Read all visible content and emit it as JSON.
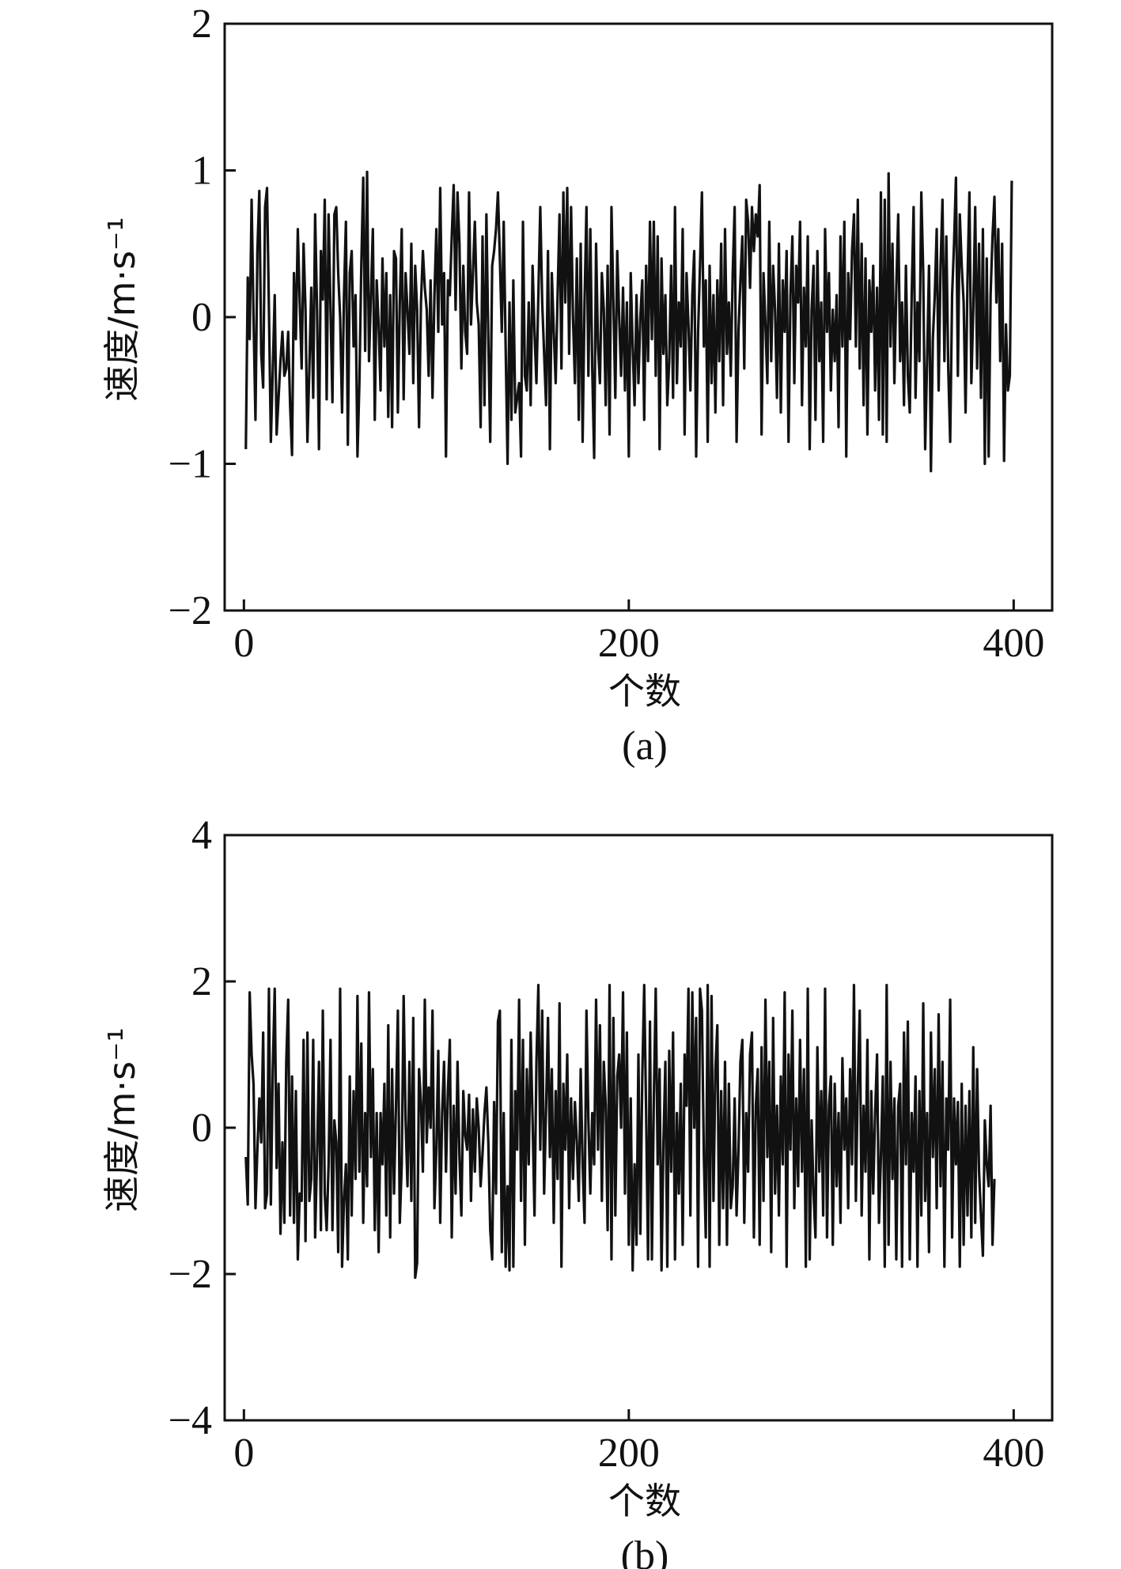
{
  "chart_data": [
    {
      "type": "line",
      "panel_label": "(a)",
      "xlabel": "个数",
      "ylabel": "速度/m·s⁻¹",
      "xlim": [
        -10,
        420
      ],
      "ylim": [
        -2,
        2
      ],
      "xticks": [
        0,
        200,
        400
      ],
      "xtick_labels": [
        "0",
        "200",
        "400"
      ],
      "yticks": [
        -2,
        -1,
        0,
        1,
        2
      ],
      "ytick_labels": [
        "−2",
        "−1",
        "0",
        "1",
        "2"
      ],
      "grid": false,
      "series": [
        {
          "x_start": 1,
          "x_step": 1,
          "values": [
            -0.9,
            0.27,
            -0.15,
            0.8,
            0.0,
            -0.7,
            0.45,
            0.86,
            -0.25,
            -0.48,
            0.75,
            0.88,
            0.05,
            -0.85,
            -0.36,
            0.15,
            -0.8,
            -0.55,
            -0.3,
            -0.1,
            -0.4,
            -0.35,
            -0.1,
            -0.6,
            -0.94,
            0.3,
            -0.15,
            0.6,
            0.1,
            -0.35,
            0.5,
            0.05,
            -0.85,
            -0.35,
            0.2,
            -0.55,
            0.7,
            0.05,
            -0.9,
            0.45,
            0.12,
            0.8,
            -0.56,
            0.7,
            0.05,
            -0.58,
            0.7,
            0.75,
            0.3,
            0.0,
            -0.65,
            0.15,
            0.65,
            -0.87,
            0.3,
            0.45,
            -0.2,
            0.15,
            -0.95,
            -0.45,
            0.35,
            0.95,
            -0.23,
            0.99,
            -0.3,
            0.15,
            0.6,
            -0.7,
            0.25,
            -0.05,
            -0.5,
            0.4,
            -0.2,
            0.3,
            -0.68,
            0.15,
            -0.75,
            0.45,
            0.4,
            -0.65,
            0.1,
            0.6,
            -0.56,
            0.3,
            0.05,
            -0.25,
            0.5,
            -0.45,
            0.35,
            0.05,
            -0.75,
            0.1,
            0.45,
            0.2,
            0.05,
            -0.4,
            0.25,
            -0.55,
            0.15,
            0.6,
            -0.1,
            0.88,
            -0.05,
            0.3,
            -0.95,
            0.25,
            0.15,
            0.55,
            0.9,
            0.05,
            0.85,
            0.5,
            -0.35,
            0.35,
            -0.1,
            -0.25,
            0.85,
            -0.05,
            0.3,
            0.65,
            0.1,
            -0.05,
            -0.75,
            0.55,
            -0.6,
            0.7,
            -0.15,
            -0.85,
            0.35,
            0.45,
            0.6,
            0.85,
            0.4,
            -0.1,
            0.65,
            -0.2,
            -1.0,
            0.1,
            -0.7,
            0.25,
            -0.65,
            -0.55,
            -0.45,
            -0.95,
            0.65,
            -0.4,
            -0.5,
            0.1,
            -0.6,
            0.35,
            -0.1,
            -0.45,
            0.15,
            0.75,
            0.1,
            -0.25,
            -0.6,
            0.45,
            -0.9,
            0.3,
            -0.1,
            -0.45,
            0.15,
            0.7,
            -0.35,
            0.85,
            0.1,
            0.88,
            -0.25,
            0.75,
            0.0,
            -0.45,
            0.4,
            -0.7,
            0.5,
            -0.85,
            0.1,
            0.75,
            -0.4,
            0.6,
            -0.35,
            -0.96,
            0.5,
            -0.2,
            -0.45,
            0.3,
            0.05,
            -0.6,
            0.35,
            -0.8,
            0.75,
            0.1,
            -0.55,
            0.45,
            0.0,
            -0.4,
            0.2,
            -0.5,
            0.1,
            -0.95,
            0.3,
            -0.2,
            -0.6,
            0.15,
            -0.45,
            0.0,
            0.25,
            -0.7,
            0.35,
            -0.3,
            0.65,
            -0.15,
            0.65,
            -0.4,
            0.55,
            -0.9,
            0.4,
            -0.25,
            0.15,
            -0.6,
            -0.3,
            0.35,
            -0.55,
            0.75,
            -0.45,
            0.1,
            -0.2,
            0.6,
            -0.8,
            0.3,
            -0.05,
            -0.5,
            0.15,
            0.45,
            -0.95,
            -0.1,
            0.35,
            0.85,
            -0.2,
            0.25,
            -0.85,
            0.35,
            -0.45,
            0.15,
            -0.65,
            0.25,
            -0.3,
            0.5,
            -0.6,
            0.6,
            -0.25,
            0.1,
            -0.4,
            0.3,
            0.75,
            -0.85,
            -0.1,
            0.25,
            0.55,
            -0.35,
            0.8,
            0.65,
            0.2,
            0.75,
            0.45,
            0.7,
            0.55,
            0.9,
            -0.8,
            0.3,
            -0.05,
            -0.45,
            0.65,
            -0.3,
            0.35,
            0.05,
            -0.55,
            0.5,
            -0.65,
            0.25,
            -0.1,
            0.45,
            -0.85,
            0.15,
            0.55,
            -0.45,
            0.35,
            0.1,
            0.65,
            -0.6,
            0.2,
            -0.2,
            0.55,
            -0.9,
            0.05,
            0.35,
            -0.7,
            0.45,
            -0.3,
            0.1,
            -0.85,
            0.6,
            -0.1,
            0.3,
            -0.5,
            0.05,
            -0.3,
            0.15,
            -0.75,
            0.55,
            -0.2,
            0.65,
            -0.95,
            0.3,
            -0.15,
            0.45,
            0.7,
            -0.2,
            0.8,
            -0.35,
            0.5,
            -0.6,
            0.4,
            -0.8,
            0.25,
            -0.1,
            0.35,
            -0.5,
            0.2,
            -0.7,
            0.85,
            -0.8,
            0.8,
            -0.85,
            0.98,
            -0.2,
            0.5,
            -0.45,
            0.2,
            0.7,
            -0.3,
            0.1,
            -0.6,
            0.35,
            -0.4,
            -0.65,
            0.15,
            0.75,
            -0.55,
            0.1,
            -0.3,
            0.85,
            0.3,
            -0.9,
            -0.3,
            0.35,
            -1.05,
            -0.15,
            0.15,
            0.6,
            -0.5,
            0.35,
            0.8,
            -0.3,
            0.55,
            -0.35,
            -0.85,
            0.15,
            0.5,
            0.95,
            -0.4,
            0.7,
            0.35,
            0.1,
            -0.65,
            0.25,
            0.85,
            -0.45,
            0.05,
            0.75,
            -0.35,
            0.5,
            -0.55,
            0.6,
            -1.0,
            0.4,
            -0.95,
            0.15,
            0.55,
            0.82,
            0.1,
            0.6,
            -0.3,
            0.5,
            -0.98,
            -0.05,
            -0.5,
            -0.4,
            0.93
          ]
        }
      ]
    },
    {
      "type": "line",
      "panel_label": "(b)",
      "xlabel": "个数",
      "ylabel": "速度/m·s⁻¹",
      "xlim": [
        -10,
        420
      ],
      "ylim": [
        -4,
        4
      ],
      "xticks": [
        0,
        200,
        400
      ],
      "xtick_labels": [
        "0",
        "200",
        "400"
      ],
      "yticks": [
        -4,
        -2,
        0,
        2,
        4
      ],
      "ytick_labels": [
        "−4",
        "−2",
        "0",
        "2",
        "4"
      ],
      "grid": false,
      "series": [
        {
          "x_start": 1,
          "x_step": 1,
          "values": [
            -0.4,
            -1.05,
            1.85,
            1.0,
            0.6,
            -1.1,
            -0.3,
            0.4,
            -0.2,
            1.3,
            -1.1,
            -0.9,
            1.9,
            -1.05,
            0.8,
            1.9,
            -0.55,
            0.6,
            -1.45,
            -0.2,
            -1.3,
            0.9,
            1.75,
            -1.2,
            0.7,
            -1.3,
            0.5,
            -1.8,
            -0.9,
            -1.0,
            1.2,
            -1.55,
            1.3,
            -1.0,
            -0.7,
            1.2,
            -1.5,
            -0.4,
            0.9,
            -1.4,
            1.6,
            -0.9,
            -1.4,
            -0.5,
            1.2,
            -1.4,
            0.1,
            -0.2,
            -1.7,
            1.9,
            -1.9,
            -1.0,
            -0.5,
            -1.8,
            0.7,
            -1.2,
            0.5,
            -0.7,
            1.8,
            -0.6,
            1.15,
            -1.3,
            0.2,
            -0.8,
            1.85,
            -0.4,
            0.8,
            -1.4,
            0.2,
            -1.7,
            0.2,
            -0.5,
            0.6,
            -1.2,
            1.4,
            -1.5,
            0.8,
            -0.9,
            0.3,
            1.6,
            -1.3,
            -0.5,
            1.8,
            0.1,
            -0.8,
            0.9,
            -1.0,
            1.5,
            -2.05,
            -1.85,
            0.8,
            0.35,
            -0.6,
            1.75,
            -0.2,
            0.55,
            0.0,
            1.6,
            -1.1,
            -0.3,
            1.05,
            -1.3,
            0.2,
            0.9,
            -0.6,
            0.5,
            1.2,
            -1.5,
            0.3,
            -0.9,
            0.9,
            -0.4,
            -1.2,
            0.5,
            -0.1,
            -0.3,
            0.45,
            -1.0,
            0.25,
            -0.6,
            0.4,
            0.0,
            -0.8,
            -0.35,
            0.2,
            0.55,
            -0.2,
            -1.4,
            -1.8,
            0.35,
            -0.9,
            1.45,
            1.6,
            -1.7,
            0.2,
            -1.9,
            -0.8,
            -1.95,
            1.2,
            -1.9,
            0.5,
            -0.3,
            1.75,
            -1.0,
            1.2,
            -1.6,
            0.8,
            -0.5,
            1.3,
            0.1,
            -1.2,
            0.9,
            1.95,
            -0.3,
            1.6,
            -0.9,
            0.25,
            1.5,
            -0.4,
            0.8,
            -1.3,
            0.5,
            -0.7,
            1.7,
            -1.9,
            0.6,
            -0.3,
            1.0,
            -1.1,
            0.4,
            -0.7,
            0.35,
            -0.2,
            -1.0,
            0.8,
            -0.5,
            -1.3,
            1.6,
            0.1,
            -0.9,
            0.2,
            -0.5,
            1.75,
            -0.3,
            1.4,
            -1.0,
            0.9,
            0.3,
            -1.4,
            1.95,
            -1.8,
            1.5,
            -1.2,
            0.7,
            1.0,
            0.0,
            1.85,
            -0.9,
            1.3,
            -1.6,
            0.4,
            -1.95,
            -0.5,
            -1.6,
            1.0,
            -1.45,
            0.7,
            1.95,
            0.2,
            -1.8,
            1.45,
            -1.8,
            0.4,
            1.9,
            -0.5,
            0.8,
            -1.95,
            -0.2,
            0.9,
            -1.9,
            1.05,
            -0.6,
            1.3,
            -1.8,
            0.2,
            -0.9,
            0.6,
            -1.6,
            1.0,
            0.3,
            1.9,
            -1.2,
            1.85,
            0.0,
            1.5,
            -1.9,
            1.9,
            1.6,
            -0.4,
            -1.5,
            1.95,
            -1.9,
            1.8,
            -1.0,
            0.8,
            1.4,
            -1.6,
            0.5,
            -1.1,
            0.9,
            -1.6,
            0.6,
            -1.1,
            -0.8,
            0.4,
            -1.2,
            -0.3,
            0.9,
            1.2,
            -1.3,
            0.2,
            -0.6,
            1.0,
            1.3,
            -1.5,
            0.3,
            0.8,
            -1.6,
            1.1,
            -1.0,
            1.75,
            -0.4,
            0.9,
            -1.7,
            1.5,
            -0.9,
            0.3,
            -1.2,
            0.7,
            -0.5,
            1.85,
            -1.9,
            1.0,
            -0.3,
            1.6,
            -1.1,
            0.4,
            -0.8,
            1.2,
            -0.6,
            0.8,
            -1.9,
            1.9,
            -1.8,
            0.1,
            -0.9,
            -1.5,
            1.1,
            -0.6,
            0.5,
            -1.2,
            1.9,
            -1.5,
            0.3,
            0.7,
            -1.6,
            0.6,
            -0.8,
            0.2,
            -1.3,
            0.95,
            -0.3,
            0.4,
            -1.1,
            0.8,
            -0.5,
            1.95,
            -1.0,
            0.6,
            1.6,
            -1.2,
            0.3,
            -0.6,
            1.2,
            -1.8,
            0.5,
            -0.9,
            0.2,
            1.0,
            -1.3,
            -0.4,
            0.7,
            -1.9,
            1.95,
            -1.6,
            0.9,
            -0.7,
            0.4,
            -1.8,
            0.3,
            0.6,
            -1.9,
            1.3,
            -0.5,
            1.45,
            -1.8,
            0.2,
            -0.6,
            0.7,
            -1.9,
            0.5,
            -1.2,
            1.7,
            -1.0,
            0.2,
            -1.7,
            1.3,
            -0.4,
            0.8,
            -1.1,
            1.55,
            -0.8,
            0.9,
            -1.9,
            0.4,
            -0.3,
            1.75,
            -1.5,
            0.4,
            -0.5,
            0.35,
            -1.9,
            0.6,
            -1.6,
            0.3,
            -1.2,
            0.5,
            -1.5,
            1.1,
            -1.3,
            0.8,
            -0.6,
            -1.2,
            -1.75,
            0.1,
            -0.5,
            -0.8,
            0.3,
            -1.6,
            -0.7
          ]
        }
      ]
    }
  ]
}
